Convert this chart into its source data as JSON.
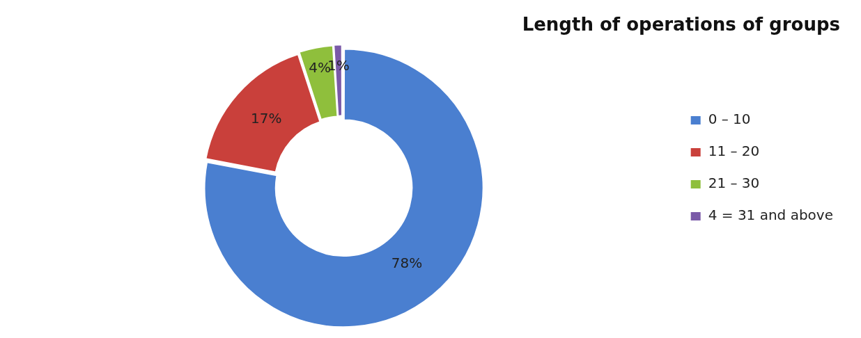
{
  "chart_data": {
    "type": "donut",
    "title": "Length of operations of groups",
    "categories": [
      "0 – 10",
      "11 – 20",
      "21 – 30",
      "4 = 31 and above"
    ],
    "values": [
      78,
      17,
      4,
      1
    ],
    "value_labels": [
      "78%",
      "17%",
      "4%",
      "1%"
    ],
    "colors": [
      "#4a7fd0",
      "#c9403b",
      "#8fbf3c",
      "#7a5aa8"
    ],
    "legend": "right"
  }
}
